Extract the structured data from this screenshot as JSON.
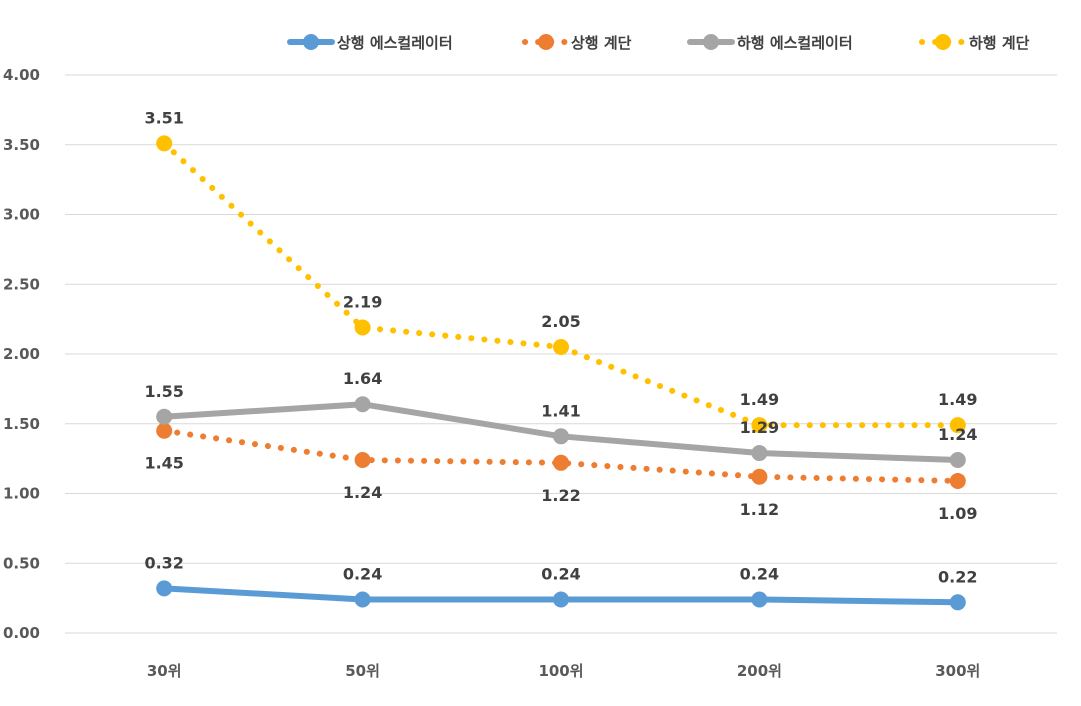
{
  "chart_data": {
    "type": "line",
    "categories": [
      "30위",
      "50위",
      "100위",
      "200위",
      "300위"
    ],
    "ylim": [
      0,
      4
    ],
    "yticks": [
      "0.00",
      "0.50",
      "1.00",
      "1.50",
      "2.00",
      "2.50",
      "3.00",
      "3.50",
      "4.00"
    ],
    "ytick_values": [
      0,
      0.5,
      1,
      1.5,
      2,
      2.5,
      3,
      3.5,
      4
    ],
    "grid": true,
    "legend": "top-right",
    "series": [
      {
        "name": "상행 에스컬레이터",
        "values": [
          0.32,
          0.24,
          0.24,
          0.24,
          0.22
        ],
        "labels": [
          "0.32",
          "0.24",
          "0.24",
          "0.24",
          "0.22"
        ],
        "color": "#5b9bd5",
        "style": "solid",
        "label_pos": "above"
      },
      {
        "name": "상행 계단",
        "values": [
          1.45,
          1.24,
          1.22,
          1.12,
          1.09
        ],
        "labels": [
          "1.45",
          "1.24",
          "1.22",
          "1.12",
          "1.09"
        ],
        "color": "#ed7d31",
        "style": "dotted",
        "label_pos": "below"
      },
      {
        "name": "하행 에스컬레이터",
        "values": [
          1.55,
          1.64,
          1.41,
          1.29,
          1.24
        ],
        "labels": [
          "1.55",
          "1.64",
          "1.41",
          "1.29",
          "1.24"
        ],
        "color": "#a5a5a5",
        "style": "solid",
        "label_pos": "above"
      },
      {
        "name": "하행 계단",
        "values": [
          3.51,
          2.19,
          2.05,
          1.49,
          1.49
        ],
        "labels": [
          "3.51",
          "2.19",
          "2.05",
          "1.49",
          "1.49"
        ],
        "color": "#ffc000",
        "style": "dotted",
        "label_pos": "above"
      }
    ]
  }
}
